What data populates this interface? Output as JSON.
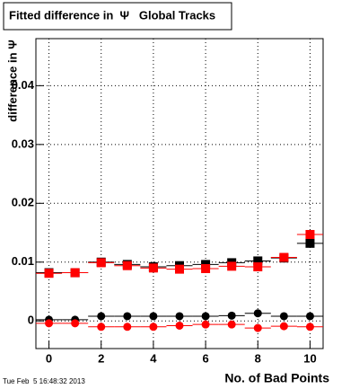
{
  "chart_data": {
    "type": "scatter",
    "title": "Fitted difference in  Ψ   Global Tracks",
    "y_label": "difference in Ψ",
    "x_label": "No. of Bad Points",
    "footer": "Tue Feb  5 16:48:32 2013",
    "x": [
      0,
      1,
      2,
      3,
      4,
      5,
      6,
      7,
      8,
      9,
      10
    ],
    "x_error": 0.5,
    "series": [
      {
        "marker": "square",
        "color": "#000000",
        "values": [
          0.0082,
          0.0082,
          0.01,
          0.0096,
          0.0092,
          0.0094,
          0.0096,
          0.0099,
          0.0102,
          0.0107,
          0.0132
        ]
      },
      {
        "marker": "square",
        "color": "#ff0000",
        "values": [
          0.0081,
          0.0082,
          0.0099,
          0.0094,
          0.009,
          0.0088,
          0.0089,
          0.0093,
          0.0092,
          0.0108,
          0.0147
        ]
      },
      {
        "marker": "circle",
        "color": "#000000",
        "values": [
          0.0002,
          0.0002,
          0.0008,
          0.0008,
          0.0008,
          0.0008,
          0.0008,
          0.0009,
          0.0013,
          0.0008,
          0.0008
        ]
      },
      {
        "marker": "circle",
        "color": "#ff0000",
        "values": [
          -0.0004,
          -0.0004,
          -0.001,
          -0.001,
          -0.001,
          -0.0008,
          -0.0006,
          -0.0006,
          -0.0012,
          -0.0009,
          -0.001
        ]
      }
    ],
    "xlim": [
      -0.5,
      10.5
    ],
    "xticks": [
      0,
      2,
      4,
      6,
      8,
      10
    ],
    "ylim": [
      -0.0047,
      0.048
    ],
    "yticks": [
      0,
      0.01,
      0.02,
      0.03,
      0.04
    ],
    "grid": true
  }
}
